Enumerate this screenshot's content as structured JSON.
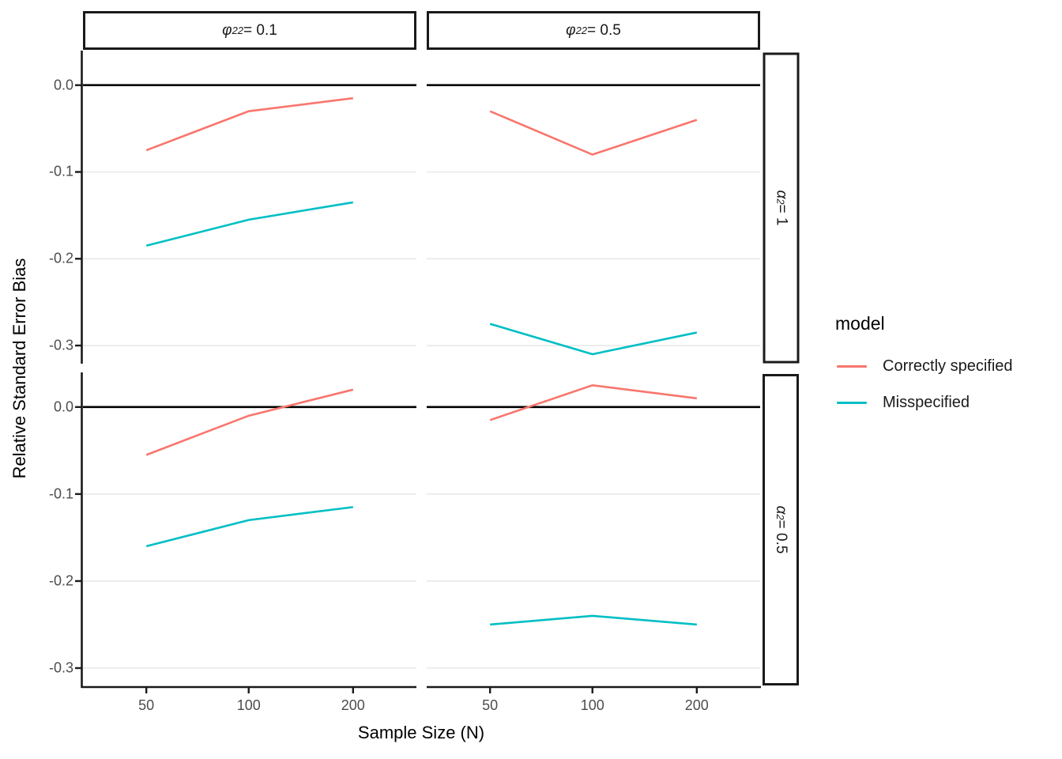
{
  "figure": {
    "ylabel": "Relative Standard Error Bias",
    "xlabel": "Sample Size (N)"
  },
  "col_strips": [
    {
      "symbol": "φ",
      "subscript": "22",
      "rest": " = 0.1"
    },
    {
      "symbol": "φ",
      "subscript": "22",
      "rest": " = 0.5"
    }
  ],
  "row_strips": [
    {
      "symbol": "α",
      "subscript": "2",
      "rest": " = 1"
    },
    {
      "symbol": "α",
      "subscript": "2",
      "rest": " = 0.5"
    }
  ],
  "legend": {
    "title": "model",
    "entries": [
      {
        "label": "Correctly specified",
        "color": "#F8766D"
      },
      {
        "label": "Misspecified",
        "color": "#00BFC4"
      }
    ]
  },
  "chart_data": {
    "type": "line",
    "title": "",
    "xlabel": "Sample Size (N)",
    "ylabel": "Relative Standard Error Bias",
    "x": [
      50,
      100,
      200
    ],
    "xtick_labels": [
      "50",
      "100",
      "200"
    ],
    "yticks": [
      0.0,
      -0.1,
      -0.2,
      -0.3
    ],
    "ytick_labels": [
      "0.0",
      "-0.1",
      "-0.2",
      "-0.3"
    ],
    "ylim": [
      -0.32,
      0.038
    ],
    "grid": "horizontal-major-only",
    "legend_position": "right",
    "reference_line_y": 0,
    "facet_cols": [
      "φ22 = 0.1",
      "φ22 = 0.5"
    ],
    "facet_rows": [
      "α2 = 1",
      "α2 = 0.5"
    ],
    "facets": [
      {
        "col": "φ22 = 0.1",
        "row": "α2 = 1",
        "series": [
          {
            "name": "Correctly specified",
            "values": [
              -0.075,
              -0.03,
              -0.015
            ]
          },
          {
            "name": "Misspecified",
            "values": [
              -0.185,
              -0.155,
              -0.135
            ]
          }
        ]
      },
      {
        "col": "φ22 = 0.5",
        "row": "α2 = 1",
        "series": [
          {
            "name": "Correctly specified",
            "values": [
              -0.03,
              -0.08,
              -0.04
            ]
          },
          {
            "name": "Misspecified",
            "values": [
              -0.275,
              -0.31,
              -0.285
            ]
          }
        ]
      },
      {
        "col": "φ22 = 0.1",
        "row": "α2 = 0.5",
        "series": [
          {
            "name": "Correctly specified",
            "values": [
              -0.055,
              -0.01,
              0.02
            ]
          },
          {
            "name": "Misspecified",
            "values": [
              -0.16,
              -0.13,
              -0.115
            ]
          }
        ]
      },
      {
        "col": "φ22 = 0.5",
        "row": "α2 = 0.5",
        "series": [
          {
            "name": "Correctly specified",
            "values": [
              -0.015,
              0.025,
              0.01
            ]
          },
          {
            "name": "Misspecified",
            "values": [
              -0.25,
              -0.24,
              -0.25
            ]
          }
        ]
      }
    ]
  }
}
